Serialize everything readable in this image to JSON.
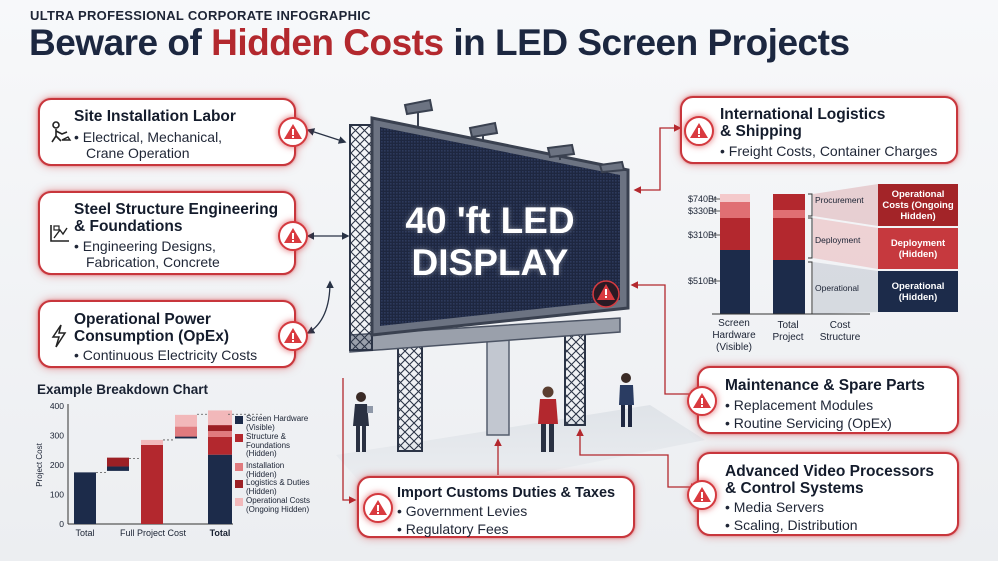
{
  "header": {
    "supertitle": "ULTRA PROFESSIONAL CORPORATE INFOGRAPHIC",
    "title_pre": "Beware of ",
    "title_accent": "Hidden Costs",
    "title_post": " in LED Screen Projects"
  },
  "colors": {
    "navy": "#1c2b4a",
    "red": "#b3282e",
    "mid_red": "#d0474c",
    "pink": "#e58f93",
    "light_pink": "#f3c6c8"
  },
  "center": {
    "sign_line1": "40 'ft LED",
    "sign_line2": "DISPLAY"
  },
  "cards": {
    "site": {
      "title": "Site Installation Labor",
      "b1": "Electrical, Mechanical,",
      "b2": "Crane Operation",
      "icon": "worker-icon"
    },
    "steel": {
      "title1": "Steel Structure Engineering",
      "title2": "& Foundations",
      "b1": "Engineering Designs,",
      "b2": "Fabrication, Concrete",
      "icon": "blueprint-icon"
    },
    "power": {
      "title1": "Operational Power",
      "title2": "Consumption (OpEx)",
      "b1": "Continuous Electricity Costs",
      "icon": "lightning-icon"
    },
    "logistics": {
      "title1": "International Logistics",
      "title2": "& Shipping",
      "b1": "Freight Costs, Container Charges"
    },
    "maintenance": {
      "title": "Maintenance & Spare Parts",
      "b1": "Replacement Modules",
      "b2": "Routine Servicing (OpEx)"
    },
    "video": {
      "title1": "Advanced Video Processors",
      "title2": "& Control Systems",
      "b1": "Media Servers",
      "b2": "Scaling, Distribution"
    },
    "customs": {
      "title": "Import Customs Duties & Taxes",
      "b1": "Government Levies",
      "b2": "Regulatory Fees"
    }
  },
  "breakdown_chart": {
    "title": "Example Breakdown Chart",
    "ylabel": "Project Cost",
    "legend": [
      {
        "line1": "Screen Hardware",
        "line2": "(Visible)",
        "line3": "",
        "color": "#1c2b4a"
      },
      {
        "line1": "Structure &",
        "line2": "Foundations",
        "line3": "(Hidden)",
        "color": "#b3282e"
      },
      {
        "line1": "Installation",
        "line2": "(Hidden)",
        "line3": "",
        "color": "#e07a7e"
      },
      {
        "line1": "Logistics & Duties",
        "line2": "(Hidden)",
        "line3": "",
        "color": "#9c2025"
      },
      {
        "line1": "Operational Costs",
        "line2": "(Ongoing Hidden)",
        "line3": "",
        "color": "#f2b8ba"
      }
    ],
    "cat1": "Total",
    "cat2": "Full Project Cost",
    "cat3": "Total"
  },
  "structure_chart": {
    "cat1_l1": "Screen",
    "cat1_l2": "Hardware",
    "cat1_l3": "(Visible)",
    "cat2_l1": "Total",
    "cat2_l2": "Project",
    "cat3_l1": "Cost",
    "cat3_l2": "Structure",
    "lbl1": "Procurement",
    "lbl2": "Deployment",
    "lbl3": "Operational",
    "box1_l1": "Operational",
    "box1_l2": "Costs (Ongoing",
    "box1_l3": "Hidden)",
    "box2_l1": "Deployment",
    "box2_l2": "(Hidden)",
    "box3_l1": "Operational",
    "box3_l2": "(Hidden)"
  },
  "chart_data": [
    {
      "type": "bar",
      "title": "Example Breakdown Chart",
      "ylabel": "Project Cost",
      "ylim": [
        0,
        400
      ],
      "yticks": [
        "400",
        "300",
        "200",
        "100",
        "0"
      ],
      "categories": [
        "Total",
        "",
        "",
        "",
        "Total"
      ],
      "series": [
        {
          "name": "Screen Hardware (Visible)",
          "values": [
            175,
            175,
            175,
            175,
            235
          ]
        },
        {
          "name": "Structure & Foundations (Hidden)",
          "values": [
            0,
            0,
            105,
            0,
            60
          ]
        },
        {
          "name": "Installation (Hidden)",
          "values": [
            0,
            0,
            0,
            0,
            20
          ]
        },
        {
          "name": "Logistics & Duties (Hidden)",
          "values": [
            0,
            28,
            0,
            0,
            25
          ]
        },
        {
          "name": "Operational Costs (Ongoing Hidden)",
          "values": [
            0,
            0,
            0,
            0,
            15
          ]
        }
      ],
      "legend_position": "right"
    },
    {
      "type": "bar",
      "categories": [
        "Screen Hardware (Visible)",
        "Total Project",
        "Cost Structure"
      ],
      "tick_labels": [
        "$740Bt",
        "$330Bt",
        "$310Bt",
        "$510Bt"
      ],
      "segment_labels": [
        "Procurement",
        "Deployment",
        "Operational"
      ]
    }
  ]
}
